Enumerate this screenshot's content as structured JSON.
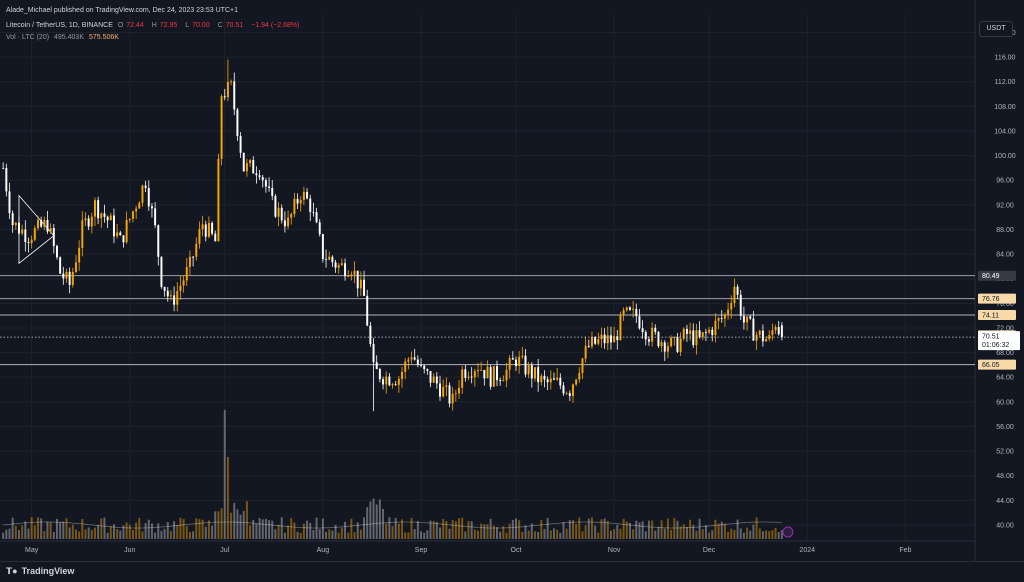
{
  "header": {
    "published": "Alade_Michael published on TradingView.com, Dec 24, 2023 23:53 UTC+1",
    "symbol": "Litecoin / TetherUS, 1D, BINANCE",
    "open_label": "O",
    "open": "72.44",
    "high_label": "H",
    "high": "72.95",
    "low_label": "L",
    "low": "70.00",
    "close_label": "C",
    "close": "70.51",
    "change": "−1.94 (−2.68%)",
    "vol_label": "Vol · LTC (20)",
    "vol_value": "495.403K",
    "vol_ma": "575.506K"
  },
  "currency_button": "USDT",
  "footer": {
    "logo_icon": "tradingview-logo-icon",
    "brand": "TradingView"
  },
  "colors": {
    "background": "#131722",
    "grid": "#1e222d",
    "up": "#f7a600",
    "down": "#ffffff",
    "label_bg": "#f8d9a8",
    "line": "#b2b5be"
  },
  "chart_data": {
    "type": "candlestick",
    "title": "Litecoin / TetherUS, 1D, BINANCE",
    "x_ticks": [
      "May",
      "Jun",
      "Jul",
      "Aug",
      "Sep",
      "Oct",
      "Nov",
      "Dec",
      "2024",
      "Feb"
    ],
    "x_tick_dates": [
      "2023-05-01",
      "2023-06-01",
      "2023-07-01",
      "2023-08-01",
      "2023-09-01",
      "2023-10-01",
      "2023-11-01",
      "2023-12-01",
      "2024-01-01",
      "2024-02-01"
    ],
    "x_range": [
      "2023-04-21",
      "2024-02-23"
    ],
    "y_ticks": [
      40,
      44,
      48,
      52,
      56,
      60,
      64,
      68,
      72,
      76,
      80,
      84,
      88,
      92,
      96,
      100,
      104,
      108,
      112,
      116,
      120
    ],
    "y_range": [
      37.4,
      123
    ],
    "grid": true,
    "price_lines": [
      80.49,
      76.76,
      74.11,
      66.05
    ],
    "price_labels": [
      {
        "value": 80.49,
        "text": "80.49"
      },
      {
        "value": 76.76,
        "text": "76.76"
      },
      {
        "value": 74.11,
        "text": "74.11"
      },
      {
        "value": 70.8,
        "text": "70.80"
      },
      {
        "value": 66.05,
        "text": "66.05"
      }
    ],
    "current_price": {
      "value": 70.51,
      "text": "70.51",
      "countdown": "01:06:32"
    },
    "trend_points": [
      {
        "date": "2023-04-22",
        "close": 98
      },
      {
        "date": "2023-04-25",
        "close": 89
      },
      {
        "date": "2023-04-30",
        "close": 87
      },
      {
        "date": "2023-05-06",
        "close": 89
      },
      {
        "date": "2023-05-10",
        "close": 81
      },
      {
        "date": "2023-05-13",
        "close": 79
      },
      {
        "date": "2023-05-17",
        "close": 88
      },
      {
        "date": "2023-05-21",
        "close": 92
      },
      {
        "date": "2023-05-26",
        "close": 89
      },
      {
        "date": "2023-05-29",
        "close": 86
      },
      {
        "date": "2023-06-02",
        "close": 91
      },
      {
        "date": "2023-06-06",
        "close": 96
      },
      {
        "date": "2023-06-09",
        "close": 88
      },
      {
        "date": "2023-06-11",
        "close": 80
      },
      {
        "date": "2023-06-14",
        "close": 76
      },
      {
        "date": "2023-06-17",
        "close": 79
      },
      {
        "date": "2023-06-20",
        "close": 82
      },
      {
        "date": "2023-06-24",
        "close": 89
      },
      {
        "date": "2023-06-28",
        "close": 86
      },
      {
        "date": "2023-06-30",
        "close": 110
      },
      {
        "date": "2023-07-03",
        "close": 111
      },
      {
        "date": "2023-07-07",
        "close": 98
      },
      {
        "date": "2023-07-12",
        "close": 98
      },
      {
        "date": "2023-07-16",
        "close": 92
      },
      {
        "date": "2023-07-21",
        "close": 89
      },
      {
        "date": "2023-07-25",
        "close": 94
      },
      {
        "date": "2023-07-28",
        "close": 92
      },
      {
        "date": "2023-08-01",
        "close": 84
      },
      {
        "date": "2023-08-06",
        "close": 82
      },
      {
        "date": "2023-08-10",
        "close": 82
      },
      {
        "date": "2023-08-14",
        "close": 77
      },
      {
        "date": "2023-08-17",
        "close": 65
      },
      {
        "date": "2023-08-21",
        "close": 64
      },
      {
        "date": "2023-08-25",
        "close": 64
      },
      {
        "date": "2023-08-29",
        "close": 68
      },
      {
        "date": "2023-09-01",
        "close": 65
      },
      {
        "date": "2023-09-06",
        "close": 63
      },
      {
        "date": "2023-09-11",
        "close": 60
      },
      {
        "date": "2023-09-14",
        "close": 65
      },
      {
        "date": "2023-09-19",
        "close": 66
      },
      {
        "date": "2023-09-23",
        "close": 64
      },
      {
        "date": "2023-09-28",
        "close": 65
      },
      {
        "date": "2023-10-01",
        "close": 67
      },
      {
        "date": "2023-10-05",
        "close": 65
      },
      {
        "date": "2023-10-10",
        "close": 63
      },
      {
        "date": "2023-10-14",
        "close": 63
      },
      {
        "date": "2023-10-18",
        "close": 62
      },
      {
        "date": "2023-10-21",
        "close": 66
      },
      {
        "date": "2023-10-24",
        "close": 69
      },
      {
        "date": "2023-10-28",
        "close": 70
      },
      {
        "date": "2023-11-01",
        "close": 70
      },
      {
        "date": "2023-11-04",
        "close": 74
      },
      {
        "date": "2023-11-08",
        "close": 74
      },
      {
        "date": "2023-11-12",
        "close": 71
      },
      {
        "date": "2023-11-16",
        "close": 70
      },
      {
        "date": "2023-11-20",
        "close": 69
      },
      {
        "date": "2023-11-24",
        "close": 71
      },
      {
        "date": "2023-11-28",
        "close": 70
      },
      {
        "date": "2023-12-02",
        "close": 72
      },
      {
        "date": "2023-12-06",
        "close": 74
      },
      {
        "date": "2023-12-09",
        "close": 79
      },
      {
        "date": "2023-12-12",
        "close": 73
      },
      {
        "date": "2023-12-16",
        "close": 71
      },
      {
        "date": "2023-12-20",
        "close": 70
      },
      {
        "date": "2023-12-22",
        "close": 73
      },
      {
        "date": "2023-12-24",
        "close": 70.51
      }
    ],
    "volume_spikes": [
      {
        "date": "2023-07-01",
        "volume": "highest"
      },
      {
        "date": "2023-07-02",
        "volume": "high"
      }
    ]
  }
}
